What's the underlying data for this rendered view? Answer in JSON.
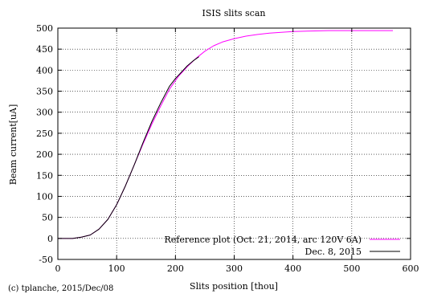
{
  "chart_data": {
    "type": "line",
    "title": "ISIS slits scan",
    "xlabel": "Slits position [thou]",
    "ylabel": "Beam current[uA]",
    "xlim": [
      0,
      600
    ],
    "ylim": [
      -50,
      500
    ],
    "x_ticks": [
      "0",
      "100",
      "200",
      "300",
      "400",
      "500",
      "600"
    ],
    "y_ticks": [
      "-50",
      "0",
      "50",
      "100",
      "150",
      "200",
      "250",
      "300",
      "350",
      "400",
      "450",
      "500"
    ],
    "grid": true,
    "legend_position": "bottom-right",
    "series": [
      {
        "name": "Reference plot (Oct. 21, 2014, arc 120V 6A)",
        "color": "#ff00ff",
        "x": [
          0,
          25,
          40,
          55,
          70,
          85,
          100,
          115,
          130,
          145,
          160,
          175,
          190,
          205,
          220,
          235,
          250,
          265,
          280,
          300,
          320,
          340,
          360,
          380,
          400,
          430,
          460,
          500,
          540,
          570
        ],
        "y": [
          0,
          0,
          3,
          8,
          22,
          45,
          80,
          125,
          175,
          225,
          272,
          315,
          355,
          385,
          408,
          428,
          445,
          458,
          467,
          475,
          481,
          485,
          488,
          490,
          492,
          493,
          494,
          494,
          494,
          494
        ]
      },
      {
        "name": "Dec. 8, 2015",
        "color": "#000000",
        "x": [
          0,
          25,
          40,
          55,
          70,
          85,
          100,
          115,
          130,
          145,
          160,
          175,
          190,
          200,
          210,
          220,
          230,
          240
        ],
        "y": [
          0,
          0,
          3,
          8,
          22,
          45,
          80,
          125,
          175,
          228,
          278,
          322,
          362,
          380,
          395,
          410,
          422,
          432
        ]
      }
    ]
  },
  "footer": {
    "copyright": "(c) tplanche, 2015/Dec/08"
  }
}
